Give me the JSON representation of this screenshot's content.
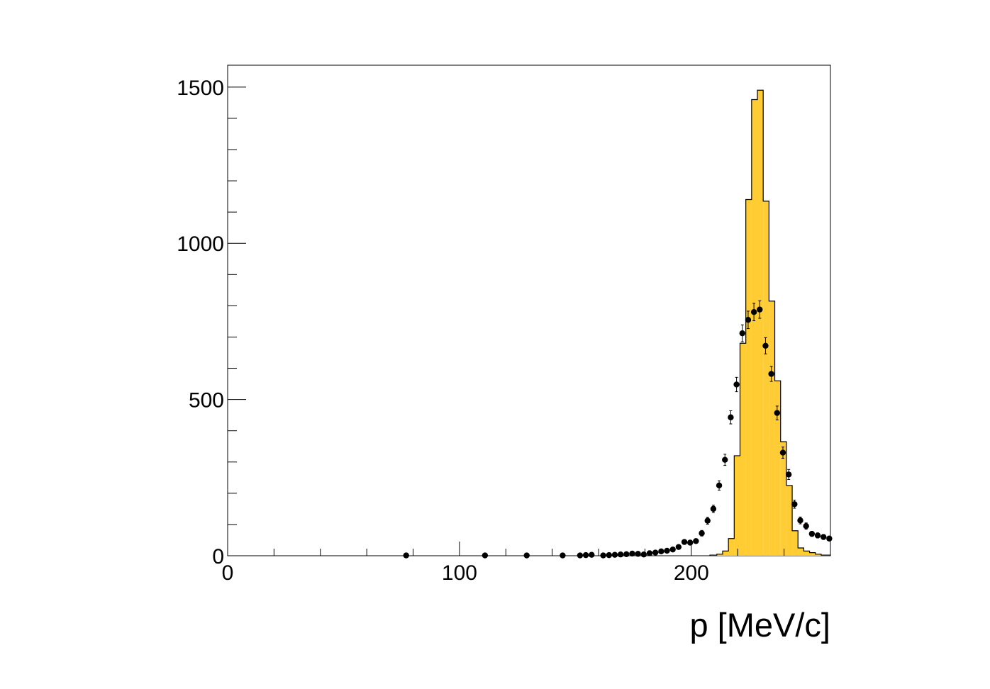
{
  "chart_data": {
    "type": "bar",
    "xlabel": "p [MeV/c]",
    "ylabel": "",
    "xlim": [
      0,
      260
    ],
    "ylim": [
      0,
      1570
    ],
    "grid": false,
    "x_ticks": [
      0,
      100,
      200
    ],
    "x_tick_labels": [
      "0",
      "100",
      "200"
    ],
    "y_ticks": [
      0,
      500,
      1000,
      1500
    ],
    "y_tick_labels": [
      "0",
      "500",
      "1000",
      "1500"
    ],
    "histogram": {
      "name": "",
      "bin_edges": [
        208,
        211,
        213.5,
        216,
        218.5,
        221,
        223.5,
        226,
        228.5,
        231,
        233.5,
        236,
        238.5,
        241,
        243.5,
        246,
        248.5,
        251,
        253.5,
        256,
        260
      ],
      "values": [
        2,
        5,
        15,
        55,
        320,
        680,
        1140,
        1460,
        1490,
        1135,
        815,
        560,
        365,
        225,
        80,
        25,
        15,
        10,
        5,
        2
      ],
      "fill_color": "#ffcc33",
      "line_color": "#000000"
    },
    "points": {
      "name": "",
      "color": "#000000",
      "x": [
        77,
        111,
        129,
        144.5,
        152,
        154.5,
        157,
        162,
        164.5,
        167,
        169.5,
        172,
        174.5,
        177,
        179.5,
        182,
        184.5,
        187,
        189.5,
        192,
        194.5,
        197,
        199.5,
        202,
        204.5,
        207,
        209.5,
        212,
        214.5,
        217,
        219.5,
        222,
        224.5,
        227,
        229.5,
        232,
        234.5,
        237,
        239.5,
        242,
        244.5,
        247,
        249.5,
        252,
        254.5,
        257,
        259.5
      ],
      "y": [
        1,
        1,
        1,
        1,
        1,
        2,
        3,
        1,
        2,
        3,
        4,
        5,
        7,
        6,
        4,
        8,
        10,
        14,
        16,
        20,
        28,
        44,
        42,
        47,
        72,
        112,
        150,
        225,
        307,
        443,
        548,
        712,
        755,
        780,
        788,
        672,
        582,
        457,
        330,
        260,
        165,
        113,
        95,
        70,
        65,
        60,
        55
      ],
      "err": [
        1,
        1,
        1,
        1,
        1,
        1,
        2,
        1,
        1,
        2,
        2,
        2,
        3,
        2,
        2,
        3,
        3,
        4,
        4,
        5,
        5,
        7,
        7,
        7,
        9,
        11,
        12,
        15,
        18,
        21,
        23,
        27,
        28,
        28,
        28,
        26,
        24,
        22,
        18,
        16,
        13,
        11,
        10,
        8,
        8,
        8,
        7
      ]
    }
  }
}
